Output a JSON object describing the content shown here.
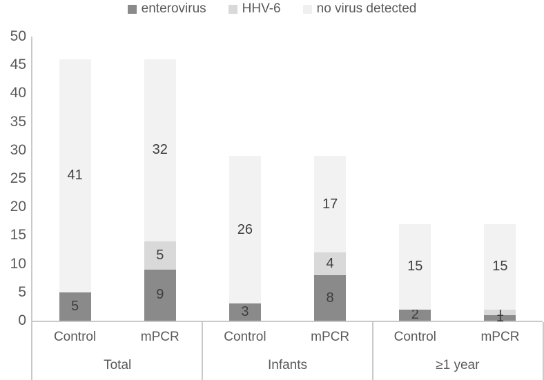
{
  "legend": {
    "items": [
      {
        "label": "enterovirus",
        "color": "#8a8a8a",
        "icon": "square-swatch"
      },
      {
        "label": "HHV-6",
        "color": "#d9d9d9",
        "icon": "square-swatch"
      },
      {
        "label": "no virus detected",
        "color": "#f0f0f0",
        "icon": "square-swatch"
      }
    ]
  },
  "chart_data": {
    "type": "bar",
    "stacked": true,
    "title": "",
    "xlabel": "",
    "ylabel": "",
    "ylim": [
      0,
      50
    ],
    "yticks": [
      0,
      5,
      10,
      15,
      20,
      25,
      30,
      35,
      40,
      45,
      50
    ],
    "grid": false,
    "legend_position": "top",
    "data_labels": true,
    "series_order": [
      "enterovirus",
      "HHV-6",
      "no virus detected"
    ],
    "series_colors": {
      "enterovirus": "#8a8a8a",
      "HHV-6": "#d9d9d9",
      "no virus detected": "#f2f2f2"
    },
    "groups": [
      {
        "label": "Total",
        "categories": [
          "Control",
          "mPCR"
        ],
        "series": [
          {
            "name": "enterovirus",
            "values": [
              5,
              9
            ]
          },
          {
            "name": "HHV-6",
            "values": [
              0,
              5
            ]
          },
          {
            "name": "no virus detected",
            "values": [
              41,
              32
            ]
          }
        ],
        "totals": [
          46,
          46
        ]
      },
      {
        "label": "Infants",
        "categories": [
          "Control",
          "mPCR"
        ],
        "series": [
          {
            "name": "enterovirus",
            "values": [
              3,
              8
            ]
          },
          {
            "name": "HHV-6",
            "values": [
              0,
              4
            ]
          },
          {
            "name": "no virus detected",
            "values": [
              26,
              17
            ]
          }
        ],
        "totals": [
          29,
          29
        ]
      },
      {
        "label": "≥1 year",
        "categories": [
          "Control",
          "mPCR"
        ],
        "series": [
          {
            "name": "enterovirus",
            "values": [
              2,
              1
            ]
          },
          {
            "name": "HHV-6",
            "values": [
              0,
              1
            ]
          },
          {
            "name": "no virus detected",
            "values": [
              15,
              15
            ]
          }
        ],
        "totals": [
          17,
          17
        ]
      }
    ]
  }
}
